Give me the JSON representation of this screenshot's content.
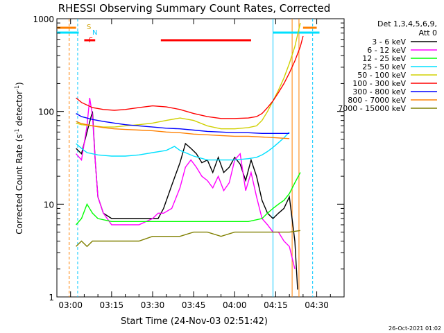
{
  "chart_data": {
    "type": "line",
    "title": "RHESSI Observing Summary Count Rates, Corrected",
    "xlabel": "Start Time (24-Nov-03 02:51:42)",
    "ylabel_main": "Corrected Count Rate (s",
    "ylabel_sup1": "-1",
    "ylabel_mid": " detector",
    "ylabel_sup2": "-1",
    "ylabel_end": ")",
    "y_scale": "log",
    "ylim": [
      1,
      1000
    ],
    "xlim_minutes": [
      -5,
      100
    ],
    "x_ticks": [
      {
        "min": 0,
        "label": "03:00"
      },
      {
        "min": 15,
        "label": "03:15"
      },
      {
        "min": 30,
        "label": "03:30"
      },
      {
        "min": 45,
        "label": "03:45"
      },
      {
        "min": 60,
        "label": "04:00"
      },
      {
        "min": 75,
        "label": "04:15"
      },
      {
        "min": 90,
        "label": "04:30"
      }
    ],
    "y_ticks": [
      {
        "v": 1,
        "label": "1"
      },
      {
        "v": 10,
        "label": "10"
      },
      {
        "v": 100,
        "label": "100"
      },
      {
        "v": 1000,
        "label": "1000"
      }
    ],
    "legend": {
      "placement": "right",
      "header": [
        "Det 1,3,4,5,6,9,",
        "Att 0"
      ]
    },
    "flag_labels": {
      "S": "S",
      "N": "N",
      "F": "F"
    },
    "timestamp": "26-Oct-2021 01:02",
    "series": [
      {
        "name": "3 - 6 keV",
        "color": "#000000",
        "points": [
          [
            2,
            40
          ],
          [
            4,
            35
          ],
          [
            6,
            60
          ],
          [
            8,
            100
          ],
          [
            9,
            30
          ],
          [
            10,
            12
          ],
          [
            12,
            8
          ],
          [
            15,
            7
          ],
          [
            20,
            7
          ],
          [
            25,
            7
          ],
          [
            30,
            7
          ],
          [
            32,
            7
          ],
          [
            34,
            9
          ],
          [
            37,
            16
          ],
          [
            40,
            28
          ],
          [
            42,
            45
          ],
          [
            44,
            40
          ],
          [
            46,
            35
          ],
          [
            48,
            28
          ],
          [
            50,
            30
          ],
          [
            52,
            22
          ],
          [
            54,
            32
          ],
          [
            56,
            22
          ],
          [
            58,
            25
          ],
          [
            60,
            32
          ],
          [
            62,
            27
          ],
          [
            64,
            18
          ],
          [
            66,
            30
          ],
          [
            68,
            20
          ],
          [
            70,
            11
          ],
          [
            72,
            8
          ],
          [
            74,
            7
          ],
          [
            76,
            8
          ],
          [
            78,
            9
          ],
          [
            80,
            12
          ],
          [
            82,
            4
          ],
          [
            83,
            1.2
          ]
        ]
      },
      {
        "name": "6 - 12 keV",
        "color": "#ff00ff",
        "points": [
          [
            2,
            35
          ],
          [
            4,
            30
          ],
          [
            6,
            70
          ],
          [
            7,
            140
          ],
          [
            8,
            90
          ],
          [
            9,
            30
          ],
          [
            10,
            12
          ],
          [
            12,
            8
          ],
          [
            15,
            6
          ],
          [
            20,
            6
          ],
          [
            25,
            6
          ],
          [
            30,
            7
          ],
          [
            32,
            8
          ],
          [
            34,
            8
          ],
          [
            37,
            9
          ],
          [
            40,
            15
          ],
          [
            42,
            25
          ],
          [
            44,
            30
          ],
          [
            46,
            25
          ],
          [
            48,
            20
          ],
          [
            50,
            18
          ],
          [
            52,
            15
          ],
          [
            54,
            20
          ],
          [
            56,
            14
          ],
          [
            58,
            17
          ],
          [
            60,
            30
          ],
          [
            62,
            35
          ],
          [
            64,
            14
          ],
          [
            66,
            22
          ],
          [
            68,
            12
          ],
          [
            70,
            7
          ],
          [
            72,
            6
          ],
          [
            74,
            5
          ],
          [
            76,
            5
          ],
          [
            78,
            4
          ],
          [
            80,
            3.5
          ],
          [
            82,
            2
          ]
        ]
      },
      {
        "name": "12 - 25 keV",
        "color": "#00ff00",
        "points": [
          [
            2,
            6
          ],
          [
            4,
            7
          ],
          [
            6,
            10
          ],
          [
            8,
            8
          ],
          [
            10,
            7
          ],
          [
            15,
            6.5
          ],
          [
            20,
            6.5
          ],
          [
            25,
            6.5
          ],
          [
            30,
            6.5
          ],
          [
            35,
            6.5
          ],
          [
            40,
            6.5
          ],
          [
            45,
            6.5
          ],
          [
            50,
            6.5
          ],
          [
            55,
            6.5
          ],
          [
            60,
            6.5
          ],
          [
            65,
            6.5
          ],
          [
            70,
            7
          ],
          [
            72,
            8
          ],
          [
            74,
            9
          ],
          [
            76,
            10
          ],
          [
            78,
            11
          ],
          [
            80,
            13
          ],
          [
            82,
            17
          ],
          [
            84,
            22
          ]
        ]
      },
      {
        "name": "25 - 50 keV",
        "color": "#00e0ff",
        "points": [
          [
            2,
            45
          ],
          [
            4,
            40
          ],
          [
            6,
            36
          ],
          [
            10,
            34
          ],
          [
            15,
            33
          ],
          [
            20,
            33
          ],
          [
            25,
            34
          ],
          [
            30,
            36
          ],
          [
            35,
            38
          ],
          [
            38,
            42
          ],
          [
            40,
            38
          ],
          [
            45,
            33
          ],
          [
            50,
            30
          ],
          [
            55,
            30
          ],
          [
            60,
            30
          ],
          [
            65,
            31
          ],
          [
            68,
            32
          ],
          [
            70,
            34
          ],
          [
            72,
            37
          ],
          [
            74,
            41
          ],
          [
            76,
            46
          ],
          [
            78,
            52
          ],
          [
            80,
            60
          ]
        ]
      },
      {
        "name": "50 - 100 keV",
        "color": "#d0d000",
        "points": [
          [
            2,
            75
          ],
          [
            4,
            72
          ],
          [
            8,
            70
          ],
          [
            12,
            68
          ],
          [
            16,
            68
          ],
          [
            20,
            70
          ],
          [
            25,
            72
          ],
          [
            30,
            75
          ],
          [
            35,
            80
          ],
          [
            40,
            85
          ],
          [
            45,
            80
          ],
          [
            50,
            70
          ],
          [
            55,
            65
          ],
          [
            60,
            65
          ],
          [
            65,
            67
          ],
          [
            68,
            70
          ],
          [
            70,
            80
          ],
          [
            72,
            100
          ],
          [
            74,
            130
          ],
          [
            76,
            170
          ],
          [
            78,
            230
          ],
          [
            80,
            330
          ],
          [
            82,
            500
          ],
          [
            84,
            900
          ]
        ]
      },
      {
        "name": "100 - 300 keV",
        "color": "#ff0000",
        "points": [
          [
            2,
            140
          ],
          [
            4,
            125
          ],
          [
            8,
            110
          ],
          [
            12,
            105
          ],
          [
            16,
            103
          ],
          [
            20,
            105
          ],
          [
            25,
            110
          ],
          [
            30,
            115
          ],
          [
            35,
            112
          ],
          [
            40,
            105
          ],
          [
            45,
            95
          ],
          [
            50,
            88
          ],
          [
            55,
            84
          ],
          [
            60,
            84
          ],
          [
            65,
            85
          ],
          [
            68,
            88
          ],
          [
            70,
            95
          ],
          [
            72,
            110
          ],
          [
            74,
            130
          ],
          [
            76,
            160
          ],
          [
            78,
            200
          ],
          [
            80,
            260
          ],
          [
            82,
            350
          ],
          [
            84,
            500
          ],
          [
            85,
            650
          ]
        ]
      },
      {
        "name": "300 - 800 keV",
        "color": "#0000ff",
        "points": [
          [
            2,
            95
          ],
          [
            4,
            88
          ],
          [
            8,
            82
          ],
          [
            12,
            78
          ],
          [
            16,
            75
          ],
          [
            20,
            72
          ],
          [
            25,
            70
          ],
          [
            30,
            68
          ],
          [
            35,
            66
          ],
          [
            40,
            65
          ],
          [
            45,
            63
          ],
          [
            50,
            61
          ],
          [
            55,
            60
          ],
          [
            60,
            59
          ],
          [
            65,
            59
          ],
          [
            70,
            58
          ],
          [
            75,
            58
          ],
          [
            80,
            58
          ]
        ]
      },
      {
        "name": "800 - 7000 keV",
        "color": "#ff8000",
        "points": [
          [
            2,
            78
          ],
          [
            4,
            74
          ],
          [
            8,
            70
          ],
          [
            12,
            67
          ],
          [
            16,
            65
          ],
          [
            20,
            64
          ],
          [
            25,
            63
          ],
          [
            30,
            62
          ],
          [
            35,
            60
          ],
          [
            40,
            59
          ],
          [
            45,
            57
          ],
          [
            50,
            56
          ],
          [
            55,
            55
          ],
          [
            60,
            54
          ],
          [
            65,
            54
          ],
          [
            70,
            53
          ],
          [
            75,
            52
          ],
          [
            80,
            51
          ]
        ]
      },
      {
        "name": "7000 - 15000 keV",
        "color": "#808000",
        "points": [
          [
            2,
            3.5
          ],
          [
            4,
            4
          ],
          [
            6,
            3.5
          ],
          [
            8,
            4
          ],
          [
            10,
            4
          ],
          [
            15,
            4
          ],
          [
            20,
            4
          ],
          [
            25,
            4
          ],
          [
            30,
            4.5
          ],
          [
            35,
            4.5
          ],
          [
            40,
            4.5
          ],
          [
            45,
            5
          ],
          [
            50,
            5
          ],
          [
            55,
            4.5
          ],
          [
            60,
            5
          ],
          [
            65,
            5
          ],
          [
            70,
            5
          ],
          [
            75,
            5
          ],
          [
            80,
            5
          ],
          [
            84,
            5.2
          ]
        ]
      }
    ]
  }
}
